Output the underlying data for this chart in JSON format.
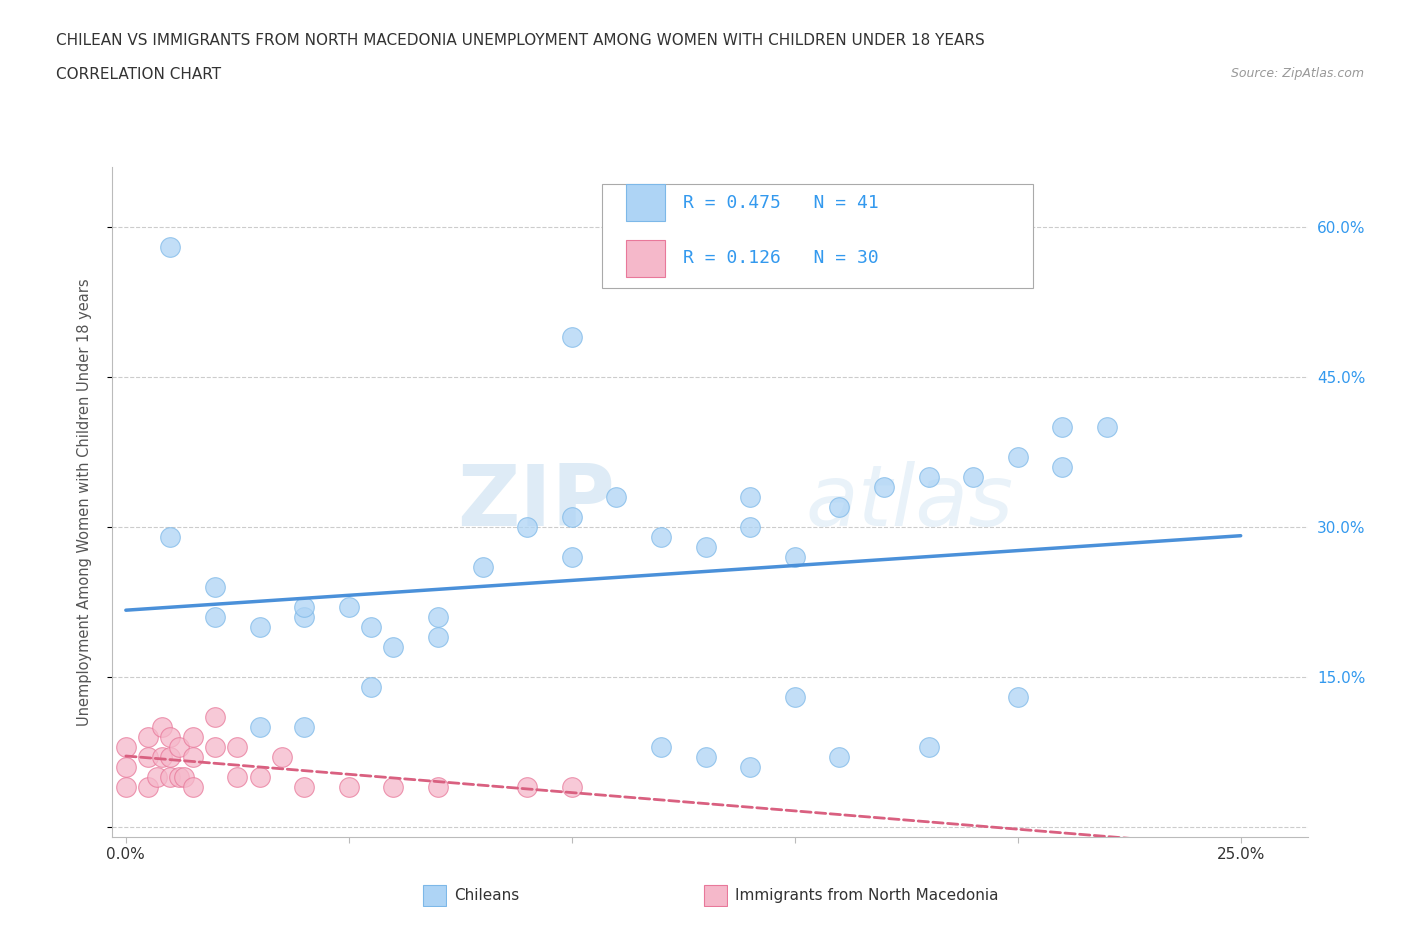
{
  "title_line1": "CHILEAN VS IMMIGRANTS FROM NORTH MACEDONIA UNEMPLOYMENT AMONG WOMEN WITH CHILDREN UNDER 18 YEARS",
  "title_line2": "CORRELATION CHART",
  "source": "Source: ZipAtlas.com",
  "ylabel": "Unemployment Among Women with Children Under 18 years",
  "watermark_zip": "ZIP",
  "watermark_atlas": "atlas",
  "chilean_R": 0.475,
  "chilean_N": 41,
  "macedonian_R": 0.126,
  "macedonian_N": 30,
  "xlim": [
    -0.003,
    0.265
  ],
  "ylim": [
    -0.01,
    0.66
  ],
  "chilean_color": "#aed4f5",
  "chilean_edge": "#7db8e8",
  "macedonian_color": "#f5b8ca",
  "macedonian_edge": "#e8789a",
  "trendline_chilean_color": "#4a90d9",
  "trendline_macedonian_color": "#d96080",
  "grid_color": "#cccccc",
  "background_color": "#ffffff",
  "chilean_x": [
    0.01,
    0.01,
    0.02,
    0.02,
    0.03,
    0.03,
    0.04,
    0.04,
    0.04,
    0.05,
    0.055,
    0.055,
    0.06,
    0.07,
    0.07,
    0.08,
    0.09,
    0.1,
    0.1,
    0.11,
    0.12,
    0.13,
    0.14,
    0.14,
    0.15,
    0.16,
    0.17,
    0.18,
    0.19,
    0.2,
    0.21,
    0.21,
    0.22,
    0.1,
    0.15,
    0.2,
    0.12,
    0.18,
    0.13,
    0.16,
    0.14
  ],
  "chilean_y": [
    0.58,
    0.29,
    0.24,
    0.21,
    0.2,
    0.1,
    0.21,
    0.22,
    0.1,
    0.22,
    0.2,
    0.14,
    0.18,
    0.21,
    0.19,
    0.26,
    0.3,
    0.27,
    0.31,
    0.33,
    0.29,
    0.28,
    0.33,
    0.3,
    0.27,
    0.32,
    0.34,
    0.35,
    0.35,
    0.37,
    0.36,
    0.4,
    0.4,
    0.49,
    0.13,
    0.13,
    0.08,
    0.08,
    0.07,
    0.07,
    0.06
  ],
  "macedonian_x": [
    0.0,
    0.0,
    0.0,
    0.005,
    0.005,
    0.005,
    0.007,
    0.008,
    0.008,
    0.01,
    0.01,
    0.01,
    0.012,
    0.012,
    0.013,
    0.015,
    0.015,
    0.015,
    0.02,
    0.02,
    0.025,
    0.025,
    0.03,
    0.035,
    0.04,
    0.05,
    0.06,
    0.07,
    0.09,
    0.1
  ],
  "macedonian_y": [
    0.04,
    0.06,
    0.08,
    0.04,
    0.07,
    0.09,
    0.05,
    0.07,
    0.1,
    0.05,
    0.07,
    0.09,
    0.05,
    0.08,
    0.05,
    0.04,
    0.07,
    0.09,
    0.08,
    0.11,
    0.05,
    0.08,
    0.05,
    0.07,
    0.04,
    0.04,
    0.04,
    0.04,
    0.04,
    0.04
  ]
}
